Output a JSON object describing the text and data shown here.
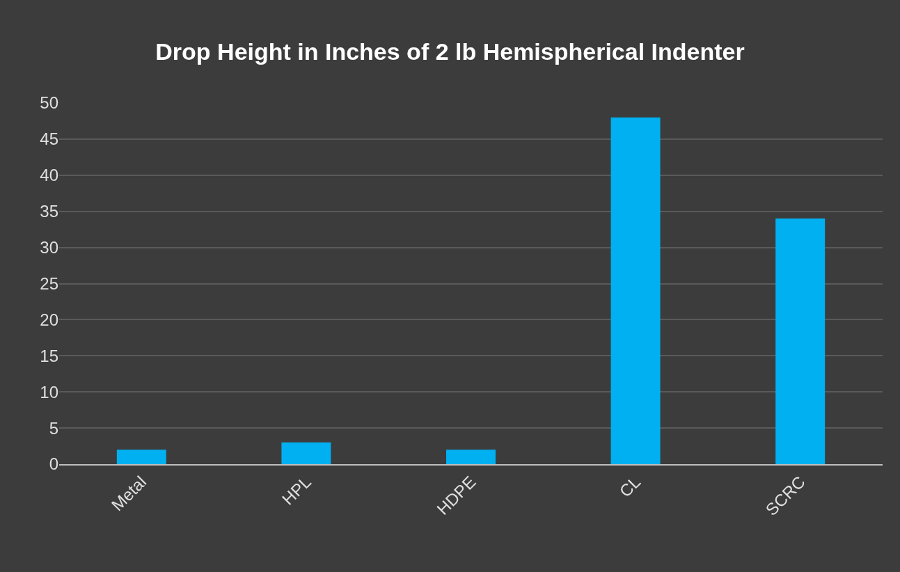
{
  "chart_data": {
    "type": "bar",
    "title": "Drop Height in Inches of 2 lb Hemispherical Indenter",
    "categories": [
      "Metal",
      "HPL",
      "HDPE",
      "CL",
      "SCRC"
    ],
    "values": [
      2,
      3,
      2,
      48,
      34
    ],
    "color": "#00b0f0",
    "ylim": [
      0,
      50
    ],
    "yticks": [
      0,
      5,
      10,
      15,
      20,
      25,
      30,
      35,
      40,
      45,
      50
    ],
    "grid": "y",
    "legend": false
  }
}
